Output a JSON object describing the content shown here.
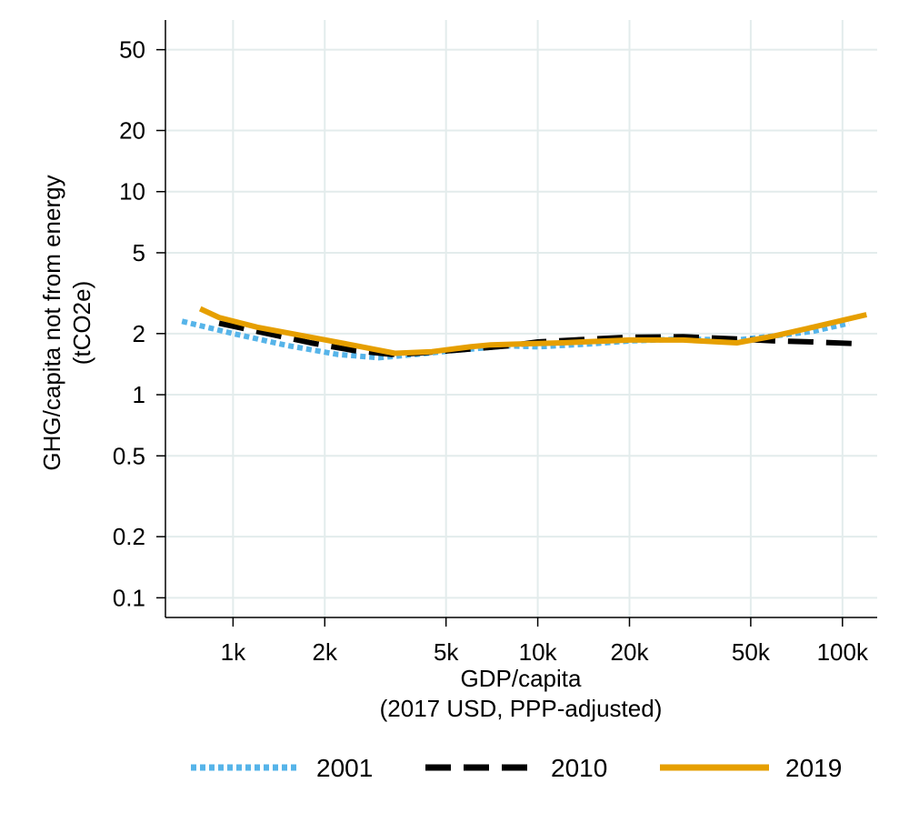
{
  "chart_data": {
    "type": "line",
    "xlabel": [
      "GDP/capita",
      "(2017 USD, PPP-adjusted)"
    ],
    "ylabel": [
      "GHG/capita not from energy",
      "(tCO2e)"
    ],
    "x_scale": "log",
    "y_scale": "log",
    "xlim": [
      600,
      130000
    ],
    "ylim": [
      0.08,
      70
    ],
    "x_ticks": [
      {
        "value": 1000,
        "label": "1k"
      },
      {
        "value": 2000,
        "label": "2k"
      },
      {
        "value": 5000,
        "label": "5k"
      },
      {
        "value": 10000,
        "label": "10k"
      },
      {
        "value": 20000,
        "label": "20k"
      },
      {
        "value": 50000,
        "label": "50k"
      },
      {
        "value": 100000,
        "label": "100k"
      }
    ],
    "y_ticks": [
      {
        "value": 50,
        "label": "50"
      },
      {
        "value": 20,
        "label": "20"
      },
      {
        "value": 10,
        "label": "10"
      },
      {
        "value": 5,
        "label": "5"
      },
      {
        "value": 2,
        "label": "2"
      },
      {
        "value": 1,
        "label": "1"
      },
      {
        "value": 0.5,
        "label": "0.5"
      },
      {
        "value": 0.2,
        "label": "0.2"
      },
      {
        "value": 0.1,
        "label": "0.1"
      }
    ],
    "grid": true,
    "legend_position": "bottom",
    "series": [
      {
        "name": "2001",
        "color": "#56b4e9",
        "style": "dotted",
        "x": [
          680,
          1000,
          1500,
          2200,
          3000,
          4000,
          5500,
          8000,
          10000,
          15000,
          20000,
          30000,
          45000,
          60000,
          80000,
          105000
        ],
        "y": [
          2.3,
          2.0,
          1.75,
          1.58,
          1.52,
          1.58,
          1.66,
          1.74,
          1.72,
          1.78,
          1.84,
          1.88,
          1.86,
          1.95,
          2.05,
          2.25
        ]
      },
      {
        "name": "2010",
        "color": "#000000",
        "style": "dashed",
        "x": [
          900,
          1200,
          1800,
          2500,
          3300,
          4000,
          5500,
          8000,
          10000,
          15000,
          20000,
          30000,
          45000,
          60000,
          80000,
          115000
        ],
        "y": [
          2.25,
          2.05,
          1.8,
          1.65,
          1.58,
          1.6,
          1.66,
          1.74,
          1.82,
          1.88,
          1.92,
          1.93,
          1.88,
          1.84,
          1.82,
          1.78
        ]
      },
      {
        "name": "2019",
        "color": "#e69f00",
        "style": "solid",
        "x": [
          780,
          900,
          1200,
          1800,
          2500,
          3400,
          4500,
          6000,
          7000,
          9000,
          12000,
          20000,
          30000,
          45000,
          60000,
          80000,
          120000
        ],
        "y": [
          2.65,
          2.4,
          2.15,
          1.92,
          1.75,
          1.6,
          1.63,
          1.72,
          1.76,
          1.78,
          1.8,
          1.86,
          1.86,
          1.8,
          1.95,
          2.15,
          2.48
        ]
      }
    ]
  }
}
